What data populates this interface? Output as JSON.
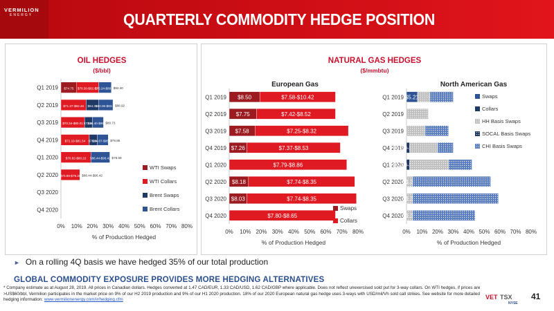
{
  "header": {
    "logo_line1": "VERMILION",
    "logo_line2": "ENERGY",
    "title": "QUARTERLY COMMODITY HEDGE POSITION"
  },
  "oil": {
    "title": "OIL HEDGES",
    "subtitle": "($/bbl)"
  },
  "gas": {
    "title": "NATURAL GAS HEDGES",
    "subtitle": "($/mmbtu)"
  },
  "chart_data": [
    {
      "type": "bar",
      "orientation": "horizontal",
      "stacked": true,
      "categories": [
        "Q1 2019",
        "Q2 2019",
        "Q3 2019",
        "Q4 2019",
        "Q1 2020",
        "Q2 2020",
        "Q3 2020",
        "Q4 2020"
      ],
      "xlabel": "% of Production Hedged",
      "xlim": [
        0,
        80
      ],
      "x_ticks": [
        "0%",
        "10%",
        "20%",
        "30%",
        "40%",
        "50%",
        "60%",
        "70%",
        "80%"
      ],
      "legend_position": "right",
      "series": [
        {
          "name": "WTI Swaps",
          "color": "#9b1b20",
          "pattern": "solid",
          "values": [
            10,
            0,
            0,
            0,
            0,
            0,
            0,
            0
          ],
          "labels": [
            "$74.75",
            "",
            "",
            "",
            "",
            "",
            "",
            ""
          ]
        },
        {
          "name": "WTI Collars",
          "color": "#e01a22",
          "pattern": "solid",
          "values": [
            14,
            16,
            15,
            18,
            19,
            12,
            0,
            0
          ],
          "labels": [
            "$70.30-$82.63",
            "$71.27-$82.46",
            "$70.34-$80.01",
            "$71.19-$81.54",
            "$70.82-$80.22",
            "$70.89-$79.29",
            "",
            ""
          ]
        },
        {
          "name": "Brent Swaps",
          "color": "#1f3864",
          "pattern": "solid",
          "values": [
            0,
            8,
            5,
            5,
            0,
            0,
            0,
            0
          ],
          "labels": [
            "",
            "$84.35",
            "$73.00",
            "$79.96",
            "",
            "",
            "",
            ""
          ]
        },
        {
          "name": "Brent Collars",
          "color": "#2e5496",
          "pattern": "solid",
          "values": [
            8,
            9,
            7,
            7,
            12,
            0,
            0,
            0
          ],
          "labels": [
            "$75.24-$88.88",
            "$80.06-$93.94",
            "$84.40-$96.28",
            "$84.87-$95.84",
            "$86.44-$96.42",
            "",
            "",
            ""
          ]
        },
        {
          "name": "",
          "color": "#2e5496",
          "pattern": "solid",
          "values": [
            0,
            0,
            0,
            0,
            0,
            0,
            0,
            0
          ],
          "labels": [
            "$92.40",
            "$88.92",
            "$80.73",
            "$79.86",
            "$78.69",
            "$86.44-$96.42",
            "",
            ""
          ]
        }
      ]
    },
    {
      "type": "bar",
      "orientation": "horizontal",
      "stacked": true,
      "title": "European Gas",
      "categories": [
        "Q1 2019",
        "Q2 2019",
        "Q3 2019",
        "Q4 2019",
        "Q1 2020",
        "Q2 2020",
        "Q3 2020",
        "Q4 2020"
      ],
      "xlabel": "% of Production Hedged",
      "xlim": [
        0,
        80
      ],
      "x_ticks": [
        "0%",
        "10%",
        "20%",
        "30%",
        "40%",
        "50%",
        "60%",
        "70%",
        "80%"
      ],
      "legend_position": "bottom-right",
      "series": [
        {
          "name": "Swaps",
          "color": "#9b1b20",
          "values": [
            19,
            17,
            16,
            11,
            0,
            12,
            11,
            0
          ],
          "labels": [
            "$8.50",
            "$7.75",
            "$7.58",
            "$7.26",
            "",
            "$8.18",
            "$8.03",
            ""
          ]
        },
        {
          "name": "Collars",
          "color": "#e01a22",
          "values": [
            47,
            49,
            58,
            58,
            73,
            66,
            68,
            66
          ],
          "labels": [
            "$7.58-$10.42",
            "$7.42-$8.52",
            "$7.25-$8.32",
            "$7.37-$8.53",
            "$7.79-$8.86",
            "$7.74-$8.35",
            "$7.74-$8.35",
            "$7.80-$8.65"
          ]
        }
      ]
    },
    {
      "type": "bar",
      "orientation": "horizontal",
      "stacked": true,
      "title": "North American Gas",
      "categories": [
        "Q1 2019",
        "Q2 2019",
        "Q3 2019",
        "Q4 2019",
        "Q1 2020",
        "Q2 2020",
        "Q3 2020",
        "Q4 2020"
      ],
      "xlabel": "% of Production Hedged",
      "xlim": [
        0,
        80
      ],
      "x_ticks": [
        "0%",
        "10%",
        "20%",
        "30%",
        "40%",
        "50%",
        "60%",
        "70%",
        "80%"
      ],
      "legend_position": "top-right",
      "series": [
        {
          "name": "Swaps",
          "color": "#2e5496",
          "pattern": "solid",
          "values": [
            7,
            0,
            0,
            0,
            0,
            0,
            0,
            0
          ],
          "labels": [
            "$5.21",
            "",
            "",
            "",
            "",
            "",
            "",
            ""
          ]
        },
        {
          "name": "Collars",
          "color": "#1f3864",
          "pattern": "solid",
          "values": [
            0,
            0,
            0,
            2,
            2,
            0,
            0,
            0
          ],
          "labels": [
            "",
            "",
            "",
            "$1.59-$2.46",
            "$1.50-$2.56",
            "",
            "",
            ""
          ]
        },
        {
          "name": "HH Basis Swaps",
          "color": "#c0c0c0",
          "pattern": "dots",
          "values": [
            8,
            14,
            12,
            18,
            25,
            4,
            4,
            4
          ],
          "labels": [
            "",
            "",
            "",
            "",
            "",
            "$1.35",
            "$1.35",
            "$1.35"
          ]
        },
        {
          "name": "SOCAL Basis Swaps",
          "color": "#1f3864",
          "pattern": "dots",
          "values": [
            0,
            0,
            0,
            0,
            0,
            0,
            0,
            0
          ],
          "labels": [
            "",
            "",
            "",
            "",
            "",
            "",
            "",
            ""
          ]
        },
        {
          "name": "CHI Basis Swaps",
          "color": "#5b7fc0",
          "pattern": "dots",
          "values": [
            15,
            0,
            15,
            10,
            15,
            50,
            55,
            40
          ],
          "labels": [
            "",
            "",
            "",
            "",
            "",
            "",
            "",
            ""
          ]
        }
      ]
    }
  ],
  "bullet": "On a rolling 4Q basis we have hedged 35% of our total production",
  "subheading": "GLOBAL COMMODITY EXPOSURE PROVIDES MORE HEDGING ALTERNATIVES",
  "footnote": {
    "text": "* Company estimate as at August 28, 2019. All prices in Canadian dollars. Hedges converted at 1.47 CAD/EUR, 1.33 CAD/USD, 1.62 CAD/GBP where applicable. Does not reflect unexercised sold put for 3-way collars. On WTI hedges, if prices are >US$60/bbl, Vermilion participates in the market price on 9% of our H2 2019 production and 9% of our H1 2020 production. 18% of our 2020 European natural gas hedge uses 3-ways with USD/mil/Vh sold call strikes.  See website for more detailed hedging information:",
    "link": "www.vermilionenergy.com/ir/hedging.cfm"
  },
  "footer": {
    "ticker": "VET",
    "exchange1": "TSX",
    "exchange2": "NYSE",
    "page_number": "41"
  }
}
